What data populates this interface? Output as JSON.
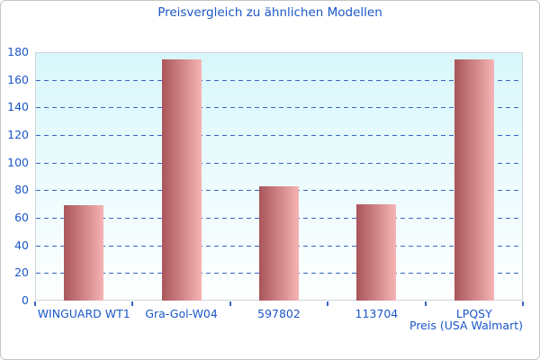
{
  "window": {
    "title": "Preisvergleich zu ähnlichen Modellen"
  },
  "colors": {
    "text_blue": "#1b57c9",
    "grid_blue": "#3a63c8",
    "bar_gradient_left": "#a9555a",
    "bar_gradient_right": "#f6b4b4",
    "plot_bg_top": "#d8f7fb",
    "plot_bg_bottom": "#feffff",
    "plot_border": "#ccd5d9",
    "frame_border": "#c5c5c5"
  },
  "chart_data": {
    "type": "bar",
    "title": "Preisvergleich zu ähnlichen Modellen",
    "categories": [
      "WINGUARD WT1",
      "Gra-Gol-W04",
      "597802",
      "113704",
      "LPQSY"
    ],
    "values": [
      69,
      174.5,
      83,
      70,
      174.5
    ],
    "xlabel": "Preis (USA Walmart)",
    "ylabel": "",
    "ylim": [
      0,
      180
    ],
    "yticks": [
      0,
      20,
      40,
      60,
      80,
      100,
      120,
      140,
      160,
      180
    ],
    "grid": "horizontal-dashed-between-0-and-180",
    "legend": "none",
    "bar_style": "horizontal-gradient-cylinder"
  }
}
